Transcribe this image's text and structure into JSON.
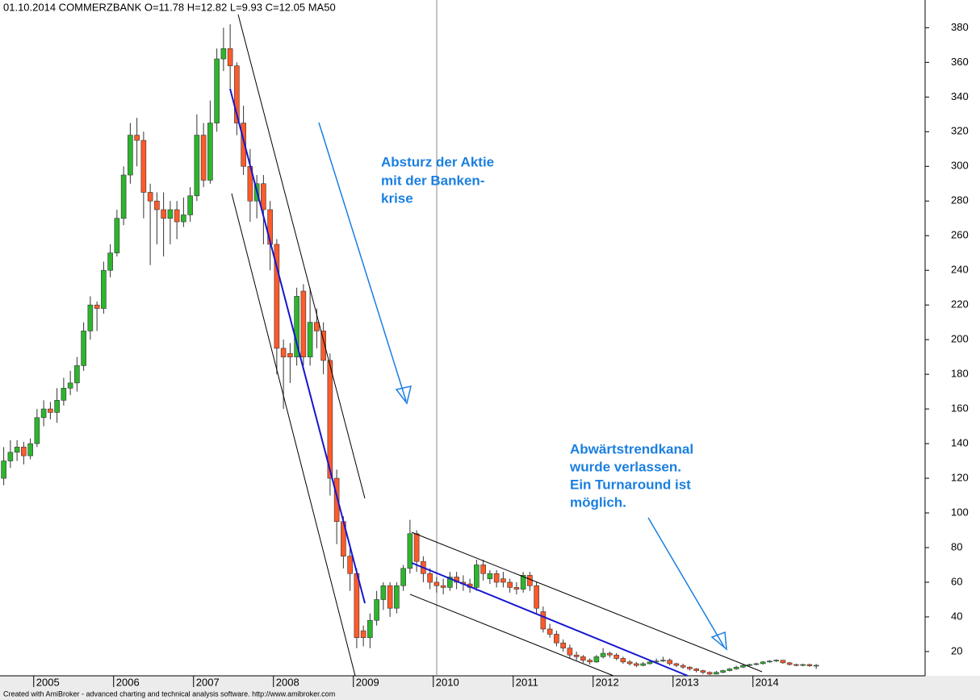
{
  "chart_data": {
    "type": "candlestick",
    "title": "01.10.2014 COMMERZBANK  O=11.78  H=12.82  L=9.93  C=12.05    MA50",
    "footer": "Created with AmiBroker - advanced charting and technical analysis software. http://www.amibroker.com",
    "annotations": [
      [
        "Absturz der Aktie",
        "mit der Banken-",
        "krise"
      ],
      [
        "Abwärtstrendkanal",
        "wurde verlassen.",
        "Ein Turnaround ist",
        "möglich."
      ]
    ],
    "categories": [
      null,
      null,
      null,
      null,
      null,
      "2005",
      null,
      null,
      null,
      null,
      null,
      null,
      null,
      null,
      null,
      null,
      null,
      "2006",
      null,
      null,
      null,
      null,
      null,
      null,
      null,
      null,
      null,
      null,
      null,
      "2007",
      null,
      null,
      null,
      null,
      null,
      null,
      null,
      null,
      null,
      null,
      null,
      "2008",
      null,
      null,
      null,
      null,
      null,
      null,
      null,
      null,
      null,
      null,
      null,
      "2009",
      null,
      null,
      null,
      null,
      null,
      null,
      null,
      null,
      null,
      null,
      null,
      "2010",
      null,
      null,
      null,
      null,
      null,
      null,
      null,
      null,
      null,
      null,
      null,
      "2011",
      null,
      null,
      null,
      null,
      null,
      null,
      null,
      null,
      null,
      null,
      null,
      "2012",
      null,
      null,
      null,
      null,
      null,
      null,
      null,
      null,
      null,
      null,
      null,
      "2013",
      null,
      null,
      null,
      null,
      null,
      null,
      null,
      null,
      null,
      null,
      null,
      "2014",
      null,
      null,
      null,
      null,
      null,
      null,
      null,
      null,
      null
    ],
    "open": [
      120,
      130,
      135,
      138,
      133,
      140,
      155,
      160,
      158,
      165,
      172,
      175,
      185,
      205,
      220,
      218,
      240,
      250,
      270,
      295,
      318,
      315,
      285,
      280,
      275,
      270,
      275,
      268,
      272,
      283,
      318,
      292,
      325,
      362,
      368,
      358,
      325,
      300,
      280,
      290,
      275,
      255,
      195,
      192,
      190,
      228,
      190,
      210,
      205,
      188,
      120,
      95,
      75,
      65,
      32,
      28,
      38,
      50,
      58,
      45,
      58,
      68,
      88,
      72,
      65,
      60,
      58,
      57,
      63,
      60,
      59,
      57,
      70,
      62,
      65,
      62,
      60,
      57,
      56,
      64,
      58,
      43,
      33,
      30,
      25,
      22,
      18,
      17,
      15,
      14,
      17,
      19,
      18,
      16,
      14,
      13,
      12,
      13,
      14,
      14.5,
      15,
      13,
      12,
      11,
      10,
      9,
      8,
      7,
      8,
      9,
      10,
      11,
      12,
      12.5,
      13,
      14,
      14.5,
      15,
      13.5,
      12.5,
      12,
      12.5,
      11.78
    ],
    "high": [
      138,
      142,
      142,
      141,
      143,
      160,
      165,
      164,
      172,
      178,
      182,
      190,
      210,
      225,
      222,
      245,
      255,
      275,
      300,
      325,
      328,
      320,
      290,
      285,
      285,
      280,
      280,
      282,
      288,
      330,
      325,
      338,
      368,
      380,
      382,
      360,
      335,
      310,
      295,
      295,
      280,
      258,
      200,
      198,
      230,
      232,
      230,
      218,
      210,
      192,
      125,
      98,
      80,
      68,
      35,
      42,
      55,
      60,
      60,
      60,
      70,
      96,
      90,
      75,
      68,
      63,
      62,
      66,
      66,
      64,
      62,
      73,
      73,
      67,
      67,
      66,
      62,
      60,
      66,
      66,
      60,
      46,
      36,
      32,
      27,
      24,
      20,
      18,
      16,
      18,
      22,
      20,
      19,
      17,
      15,
      14,
      14,
      15,
      16,
      17,
      16,
      13.5,
      13,
      11.5,
      10.5,
      9.5,
      8.5,
      8.8,
      9.5,
      10.5,
      11.8,
      12.8,
      13,
      13.5,
      14.5,
      15,
      15.5,
      15.2,
      14,
      13,
      13,
      13,
      12.82
    ],
    "low": [
      116,
      126,
      130,
      128,
      131,
      138,
      150,
      154,
      152,
      162,
      168,
      170,
      182,
      200,
      205,
      215,
      236,
      248,
      266,
      290,
      300,
      270,
      243,
      255,
      248,
      255,
      258,
      265,
      268,
      280,
      288,
      290,
      320,
      355,
      345,
      318,
      295,
      268,
      270,
      255,
      240,
      180,
      160,
      175,
      185,
      185,
      185,
      195,
      180,
      110,
      82,
      68,
      55,
      22,
      23,
      22,
      35,
      44,
      40,
      42,
      55,
      65,
      66,
      60,
      56,
      54,
      53,
      55,
      56,
      55,
      54,
      55,
      61,
      59,
      57,
      57,
      54,
      53,
      54,
      55,
      42,
      31,
      28,
      23,
      20,
      16,
      15,
      13.5,
      12.5,
      13.5,
      16,
      16.5,
      15,
      13,
      12,
      11,
      11.5,
      12.5,
      13,
      14,
      12,
      11,
      10,
      9,
      8,
      7,
      6.5,
      6.8,
      7.5,
      8.5,
      9.5,
      10.5,
      11.5,
      12,
      12.5,
      13.5,
      14,
      13,
      12,
      11.5,
      11.5,
      11.2,
      9.93
    ],
    "close": [
      130,
      135,
      138,
      133,
      140,
      155,
      160,
      158,
      165,
      172,
      175,
      185,
      205,
      220,
      218,
      240,
      250,
      270,
      295,
      318,
      315,
      285,
      280,
      275,
      270,
      275,
      268,
      272,
      283,
      318,
      292,
      325,
      362,
      368,
      358,
      325,
      300,
      280,
      290,
      275,
      255,
      195,
      190,
      190,
      225,
      190,
      210,
      205,
      188,
      120,
      95,
      75,
      65,
      28,
      28,
      38,
      50,
      58,
      45,
      58,
      68,
      88,
      72,
      65,
      60,
      58,
      57,
      63,
      60,
      59,
      57,
      70,
      65,
      65,
      60,
      60,
      57,
      56,
      64,
      58,
      45,
      33,
      30,
      25,
      22,
      18,
      17,
      15,
      14,
      17,
      19,
      18,
      16,
      14,
      13,
      12,
      13,
      14,
      14.5,
      15,
      13,
      12,
      11,
      10,
      9,
      8,
      7,
      8,
      9,
      10,
      11,
      12,
      12.5,
      13,
      14,
      14.5,
      15,
      13.5,
      12.5,
      12,
      12.5,
      11.78,
      12.05
    ],
    "up_color": "#2db52d",
    "down_color": "#ff5a2a",
    "ylim": [
      6,
      396
    ],
    "yticks": [
      20,
      40,
      60,
      80,
      100,
      120,
      140,
      160,
      180,
      200,
      220,
      240,
      260,
      280,
      300,
      320,
      340,
      360,
      380
    ]
  }
}
